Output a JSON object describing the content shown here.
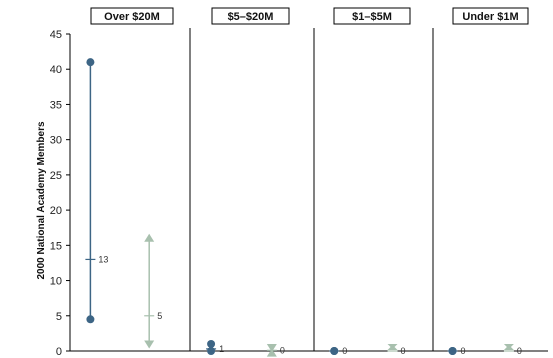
{
  "chart_data": {
    "type": "range",
    "ylabel": "2000 National Academy Members",
    "ylim": [
      0,
      45
    ],
    "yticks": [
      0,
      5,
      10,
      15,
      20,
      25,
      30,
      35,
      40,
      45
    ],
    "panels": [
      {
        "title": "Over $20M",
        "series": [
          {
            "low": 4.5,
            "high": 41,
            "mid": 13,
            "label": "13",
            "color": "#3d6585"
          },
          {
            "low": 0.5,
            "high": 16.5,
            "mid": 5,
            "label": "5",
            "color": "#a8c0ae"
          }
        ]
      },
      {
        "title": "$5–$20M",
        "series": [
          {
            "low": 0,
            "high": 1,
            "mid": 0.3,
            "label": "1",
            "color": "#3d6585"
          },
          {
            "low": 0,
            "high": 0.2,
            "mid": 0.1,
            "label": "0",
            "color": "#a8c0ae"
          }
        ]
      },
      {
        "title": "$1–$5M",
        "series": [
          {
            "low": 0,
            "high": 0,
            "mid": 0,
            "label": "0",
            "color": "#3d6585"
          },
          {
            "low": 0,
            "high": 0,
            "mid": 0,
            "label": "0",
            "color": "#a8c0ae"
          }
        ]
      },
      {
        "title": "Under $1M",
        "series": [
          {
            "low": 0,
            "high": 0,
            "mid": 0,
            "label": "0",
            "color": "#3d6585"
          },
          {
            "low": 0,
            "high": 0,
            "mid": 0,
            "label": "0",
            "color": "#a8c0ae"
          }
        ]
      }
    ]
  }
}
